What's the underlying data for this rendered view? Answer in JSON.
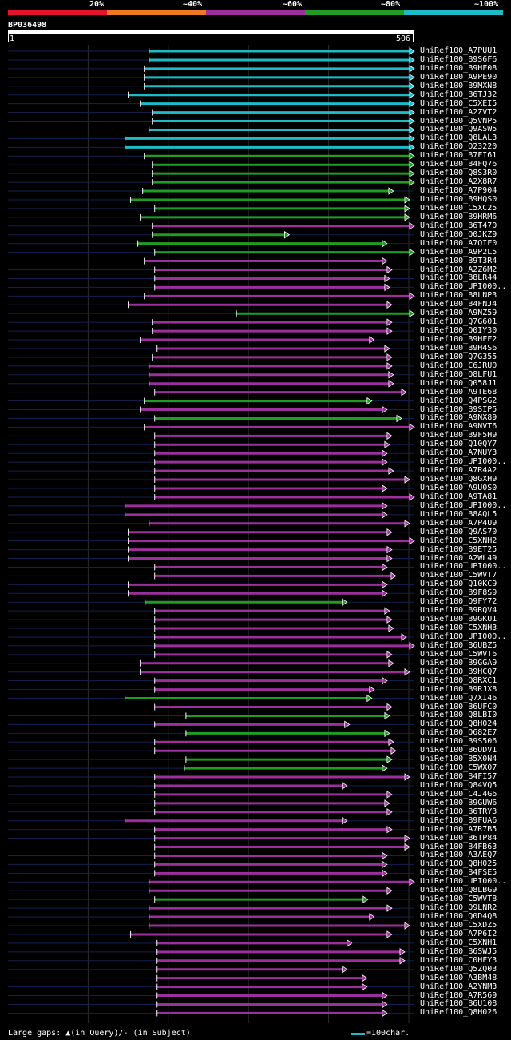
{
  "scale": {
    "labels": [
      "20%",
      "~40%",
      "~60%",
      "~80%",
      "~100%"
    ],
    "colors": [
      "#e5132c",
      "#ee7a1f",
      "#9c2f9c",
      "#1f9c24",
      "#1bbcc8"
    ]
  },
  "query": {
    "id": "BP036498",
    "start": "1",
    "end": "506",
    "length": 506
  },
  "legend": {
    "gaps_text": "Large gaps: ▲(in Query)/- (in Subject)",
    "scale_text": "=100char."
  },
  "hits": [
    {
      "name": "UniRef100_A7PUU1",
      "start": 176,
      "end": 506,
      "color": "cyan"
    },
    {
      "name": "UniRef100_B9S6F6",
      "start": 176,
      "end": 506,
      "color": "cyan"
    },
    {
      "name": "UniRef100_B9HF08",
      "start": 170,
      "end": 506,
      "color": "cyan"
    },
    {
      "name": "UniRef100_A9PE90",
      "start": 170,
      "end": 506,
      "color": "cyan"
    },
    {
      "name": "UniRef100_B9MXN8",
      "start": 170,
      "end": 506,
      "color": "cyan"
    },
    {
      "name": "UniRef100_B6TJ32",
      "start": 150,
      "end": 506,
      "color": "cyan"
    },
    {
      "name": "UniRef100_C5XEI5",
      "start": 165,
      "end": 506,
      "color": "cyan"
    },
    {
      "name": "UniRef100_A2ZVT2",
      "start": 180,
      "end": 506,
      "color": "cyan"
    },
    {
      "name": "UniRef100_Q5VNP5",
      "start": 180,
      "end": 506,
      "color": "cyan"
    },
    {
      "name": "UniRef100_Q9ASW5",
      "start": 176,
      "end": 506,
      "color": "cyan"
    },
    {
      "name": "UniRef100_Q8LAL3",
      "start": 146,
      "end": 506,
      "color": "cyan"
    },
    {
      "name": "UniRef100_O23220",
      "start": 146,
      "end": 506,
      "color": "cyan"
    },
    {
      "name": "UniRef100_B7FI61",
      "start": 170,
      "end": 506,
      "color": "green"
    },
    {
      "name": "UniRef100_B4FQ76",
      "start": 180,
      "end": 506,
      "color": "green"
    },
    {
      "name": "UniRef100_Q8S3R0",
      "start": 180,
      "end": 506,
      "color": "green"
    },
    {
      "name": "UniRef100_A2X8R7",
      "start": 180,
      "end": 506,
      "color": "green"
    },
    {
      "name": "UniRef100_A7P904",
      "start": 168,
      "end": 480,
      "color": "green"
    },
    {
      "name": "UniRef100_B9HQS0",
      "start": 153,
      "end": 500,
      "color": "green"
    },
    {
      "name": "UniRef100_C5XC25",
      "start": 183,
      "end": 500,
      "color": "green"
    },
    {
      "name": "UniRef100_B9HRM6",
      "start": 165,
      "end": 500,
      "color": "green"
    },
    {
      "name": "UniRef100_B6T470",
      "start": 180,
      "end": 506,
      "color": "purple"
    },
    {
      "name": "UniRef100_Q0JKZ9",
      "start": 180,
      "end": 350,
      "color": "green"
    },
    {
      "name": "UniRef100_A7QIF0",
      "start": 162,
      "end": 472,
      "color": "green"
    },
    {
      "name": "UniRef100_A9P2L5",
      "start": 183,
      "end": 506,
      "color": "green"
    },
    {
      "name": "UniRef100_B9T3R4",
      "start": 170,
      "end": 472,
      "color": "purple"
    },
    {
      "name": "UniRef100_A2Z6M2",
      "start": 183,
      "end": 478,
      "color": "purple"
    },
    {
      "name": "UniRef100_B8LR44",
      "start": 183,
      "end": 475,
      "color": "purple"
    },
    {
      "name": "UniRef100_UPI000..",
      "start": 183,
      "end": 475,
      "color": "purple"
    },
    {
      "name": "UniRef100_B8LNP3",
      "start": 170,
      "end": 506,
      "color": "purple"
    },
    {
      "name": "UniRef100_B4FNJ4",
      "start": 150,
      "end": 478,
      "color": "purple"
    },
    {
      "name": "UniRef100_A9NZ59",
      "start": 285,
      "end": 506,
      "color": "green"
    },
    {
      "name": "UniRef100_Q7G601",
      "start": 180,
      "end": 478,
      "color": "purple"
    },
    {
      "name": "UniRef100_Q0IY30",
      "start": 180,
      "end": 478,
      "color": "purple"
    },
    {
      "name": "UniRef100_B9HFF2",
      "start": 165,
      "end": 456,
      "color": "purple"
    },
    {
      "name": "UniRef100_B9H4S6",
      "start": 186,
      "end": 475,
      "color": "purple"
    },
    {
      "name": "UniRef100_Q7G355",
      "start": 180,
      "end": 478,
      "color": "purple"
    },
    {
      "name": "UniRef100_C6JRU0",
      "start": 176,
      "end": 478,
      "color": "purple"
    },
    {
      "name": "UniRef100_Q8LFU1",
      "start": 176,
      "end": 480,
      "color": "purple"
    },
    {
      "name": "UniRef100_Q058J1",
      "start": 176,
      "end": 480,
      "color": "purple"
    },
    {
      "name": "UniRef100_A9TE68",
      "start": 183,
      "end": 496,
      "color": "purple"
    },
    {
      "name": "UniRef100_Q4PSG2",
      "start": 170,
      "end": 453,
      "color": "green"
    },
    {
      "name": "UniRef100_B9SIP5",
      "start": 165,
      "end": 472,
      "color": "purple"
    },
    {
      "name": "UniRef100_A9NX89",
      "start": 183,
      "end": 490,
      "color": "green"
    },
    {
      "name": "UniRef100_A9NVT6",
      "start": 170,
      "end": 506,
      "color": "purple"
    },
    {
      "name": "UniRef100_B9F5H9",
      "start": 183,
      "end": 478,
      "color": "purple"
    },
    {
      "name": "UniRef100_Q10QY7",
      "start": 183,
      "end": 475,
      "color": "purple"
    },
    {
      "name": "UniRef100_A7NUY3",
      "start": 183,
      "end": 472,
      "color": "purple"
    },
    {
      "name": "UniRef100_UPI000..",
      "start": 183,
      "end": 472,
      "color": "purple"
    },
    {
      "name": "UniRef100_A7R4A2",
      "start": 183,
      "end": 480,
      "color": "purple"
    },
    {
      "name": "UniRef100_Q8GXH9",
      "start": 183,
      "end": 500,
      "color": "purple"
    },
    {
      "name": "UniRef100_A9U0S0",
      "start": 183,
      "end": 472,
      "color": "purple"
    },
    {
      "name": "UniRef100_A9TA81",
      "start": 183,
      "end": 506,
      "color": "purple"
    },
    {
      "name": "UniRef100_UPI000..",
      "start": 146,
      "end": 472,
      "color": "purple"
    },
    {
      "name": "UniRef100_B8AQL5",
      "start": 146,
      "end": 472,
      "color": "purple"
    },
    {
      "name": "UniRef100_A7P4U9",
      "start": 176,
      "end": 500,
      "color": "purple"
    },
    {
      "name": "UniRef100_Q9AS70",
      "start": 150,
      "end": 478,
      "color": "purple"
    },
    {
      "name": "UniRef100_C5XNH2",
      "start": 150,
      "end": 506,
      "color": "purple"
    },
    {
      "name": "UniRef100_B9ET25",
      "start": 150,
      "end": 478,
      "color": "purple"
    },
    {
      "name": "UniRef100_A2WL49",
      "start": 150,
      "end": 478,
      "color": "purple"
    },
    {
      "name": "UniRef100_UPI000..",
      "start": 183,
      "end": 472,
      "color": "purple"
    },
    {
      "name": "UniRef100_C5WVT7",
      "start": 183,
      "end": 483,
      "color": "purple"
    },
    {
      "name": "UniRef100_Q10KC9",
      "start": 150,
      "end": 472,
      "color": "purple"
    },
    {
      "name": "UniRef100_B9F8S9",
      "start": 150,
      "end": 472,
      "color": "purple"
    },
    {
      "name": "UniRef100_Q9FY72",
      "start": 171,
      "end": 422,
      "color": "green"
    },
    {
      "name": "UniRef100_B9RQV4",
      "start": 183,
      "end": 475,
      "color": "purple"
    },
    {
      "name": "UniRef100_B9GKU1",
      "start": 183,
      "end": 478,
      "color": "purple"
    },
    {
      "name": "UniRef100_C5XNH3",
      "start": 183,
      "end": 480,
      "color": "purple"
    },
    {
      "name": "UniRef100_UPI000..",
      "start": 183,
      "end": 496,
      "color": "purple"
    },
    {
      "name": "UniRef100_B6UBZ5",
      "start": 183,
      "end": 506,
      "color": "purple"
    },
    {
      "name": "UniRef100_C5WVT6",
      "start": 183,
      "end": 478,
      "color": "purple"
    },
    {
      "name": "UniRef100_B9GGA9",
      "start": 165,
      "end": 480,
      "color": "purple"
    },
    {
      "name": "UniRef100_B9HCQ7",
      "start": 165,
      "end": 500,
      "color": "purple"
    },
    {
      "name": "UniRef100_Q8RXC1",
      "start": 183,
      "end": 472,
      "color": "purple"
    },
    {
      "name": "UniRef100_B9RJX8",
      "start": 183,
      "end": 456,
      "color": "purple"
    },
    {
      "name": "UniRef100_Q7XI46",
      "start": 146,
      "end": 453,
      "color": "green"
    },
    {
      "name": "UniRef100_B6UFC0",
      "start": 183,
      "end": 478,
      "color": "purple"
    },
    {
      "name": "UniRef100_Q8LBI0",
      "start": 222,
      "end": 475,
      "color": "green"
    },
    {
      "name": "UniRef100_Q8H024",
      "start": 183,
      "end": 425,
      "color": "purple"
    },
    {
      "name": "UniRef100_Q682E7",
      "start": 222,
      "end": 475,
      "color": "green"
    },
    {
      "name": "UniRef100_B9S506",
      "start": 183,
      "end": 480,
      "color": "purple"
    },
    {
      "name": "UniRef100_B6UDV1",
      "start": 183,
      "end": 483,
      "color": "purple"
    },
    {
      "name": "UniRef100_B5X0N4",
      "start": 222,
      "end": 478,
      "color": "green"
    },
    {
      "name": "UniRef100_C5WX07",
      "start": 220,
      "end": 472,
      "color": "green"
    },
    {
      "name": "UniRef100_B4FI57",
      "start": 183,
      "end": 500,
      "color": "purple"
    },
    {
      "name": "UniRef100_Q84VQ5",
      "start": 183,
      "end": 422,
      "color": "purple"
    },
    {
      "name": "UniRef100_C4J4G6",
      "start": 183,
      "end": 478,
      "color": "purple"
    },
    {
      "name": "UniRef100_B9GUW6",
      "start": 183,
      "end": 475,
      "color": "purple"
    },
    {
      "name": "UniRef100_B6TRY3",
      "start": 183,
      "end": 478,
      "color": "purple"
    },
    {
      "name": "UniRef100_B9FUA6",
      "start": 146,
      "end": 422,
      "color": "purple"
    },
    {
      "name": "UniRef100_A7R7B5",
      "start": 183,
      "end": 478,
      "color": "purple"
    },
    {
      "name": "UniRef100_B6TP84",
      "start": 183,
      "end": 500,
      "color": "purple"
    },
    {
      "name": "UniRef100_B4FB63",
      "start": 183,
      "end": 500,
      "color": "purple"
    },
    {
      "name": "UniRef100_A3AEQ7",
      "start": 183,
      "end": 472,
      "color": "purple"
    },
    {
      "name": "UniRef100_Q8H025",
      "start": 183,
      "end": 472,
      "color": "purple"
    },
    {
      "name": "UniRef100_B4FSE5",
      "start": 183,
      "end": 472,
      "color": "purple"
    },
    {
      "name": "UniRef100_UPI000..",
      "start": 176,
      "end": 506,
      "color": "purple"
    },
    {
      "name": "UniRef100_Q8LBG9",
      "start": 176,
      "end": 478,
      "color": "purple"
    },
    {
      "name": "UniRef100_C5WVT8",
      "start": 183,
      "end": 448,
      "color": "green"
    },
    {
      "name": "UniRef100_Q9LNR2",
      "start": 176,
      "end": 478,
      "color": "purple"
    },
    {
      "name": "UniRef100_Q0D4Q8",
      "start": 176,
      "end": 456,
      "color": "purple"
    },
    {
      "name": "UniRef100_C5XDZ5",
      "start": 176,
      "end": 500,
      "color": "purple"
    },
    {
      "name": "UniRef100_A7P6I2",
      "start": 153,
      "end": 478,
      "color": "purple"
    },
    {
      "name": "UniRef100_C5XNH1",
      "start": 186,
      "end": 428,
      "color": "purple"
    },
    {
      "name": "UniRef100_B6SWJ5",
      "start": 186,
      "end": 494,
      "color": "purple"
    },
    {
      "name": "UniRef100_C0HFY3",
      "start": 186,
      "end": 494,
      "color": "purple"
    },
    {
      "name": "UniRef100_Q5ZQ03",
      "start": 186,
      "end": 422,
      "color": "purple"
    },
    {
      "name": "UniRef100_A3BM48",
      "start": 186,
      "end": 447,
      "color": "purple"
    },
    {
      "name": "UniRef100_A2YNM3",
      "start": 186,
      "end": 447,
      "color": "purple"
    },
    {
      "name": "UniRef100_A7R569",
      "start": 186,
      "end": 472,
      "color": "purple"
    },
    {
      "name": "UniRef100_B6U108",
      "start": 186,
      "end": 472,
      "color": "purple"
    },
    {
      "name": "UniRef100_Q8H026",
      "start": 186,
      "end": 472,
      "color": "purple"
    }
  ]
}
